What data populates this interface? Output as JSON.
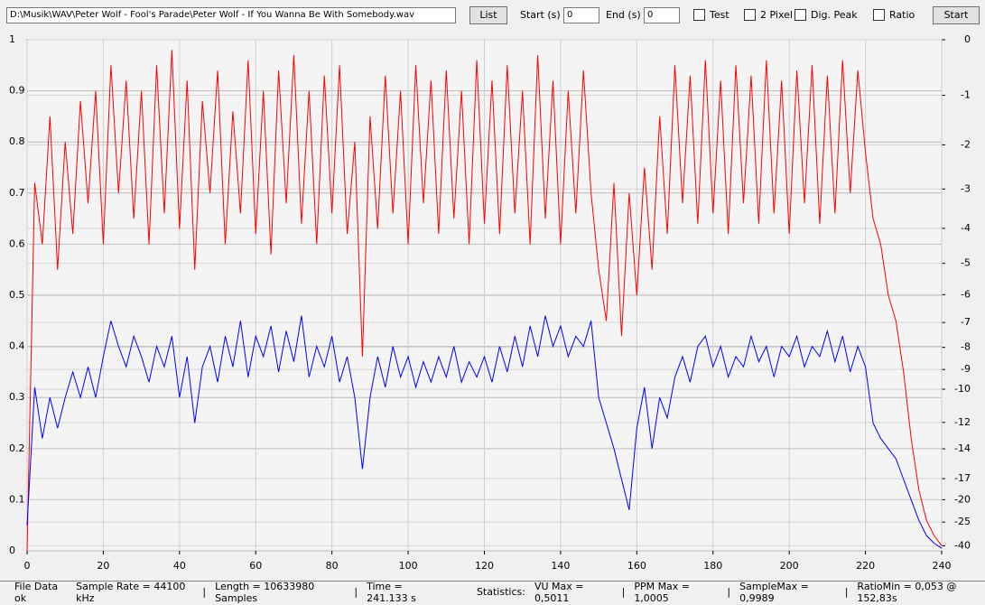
{
  "toolbar": {
    "file_path": "D:\\Musik\\WAV\\Peter Wolf - Fool's Parade\\Peter Wolf - If You Wanna Be With Somebody.wav",
    "list_button": "List",
    "start_label": "Start (s)",
    "start_value": "0",
    "end_label": "End (s)",
    "end_value": "0",
    "checkboxes": [
      "Test",
      "2 Pixel",
      "Dig. Peak",
      "Ratio"
    ],
    "start_button": "Start"
  },
  "chart_data": {
    "type": "line",
    "x": [
      0,
      2,
      4,
      6,
      8,
      10,
      12,
      14,
      16,
      18,
      20,
      22,
      24,
      26,
      28,
      30,
      32,
      34,
      36,
      38,
      40,
      42,
      44,
      46,
      48,
      50,
      52,
      54,
      56,
      58,
      60,
      62,
      64,
      66,
      68,
      70,
      72,
      74,
      76,
      78,
      80,
      82,
      84,
      86,
      88,
      90,
      92,
      94,
      96,
      98,
      100,
      102,
      104,
      106,
      108,
      110,
      112,
      114,
      116,
      118,
      120,
      122,
      124,
      126,
      128,
      130,
      132,
      134,
      136,
      138,
      140,
      142,
      144,
      146,
      148,
      150,
      152,
      154,
      156,
      158,
      160,
      162,
      164,
      166,
      168,
      170,
      172,
      174,
      176,
      178,
      180,
      182,
      184,
      186,
      188,
      190,
      192,
      194,
      196,
      198,
      200,
      202,
      204,
      206,
      208,
      210,
      212,
      214,
      216,
      218,
      220,
      222,
      224,
      226,
      228,
      230,
      232,
      234,
      236,
      238,
      240
    ],
    "series": [
      {
        "color": "#ff0000",
        "values": [
          0,
          0.72,
          0.6,
          0.85,
          0.55,
          0.8,
          0.62,
          0.88,
          0.68,
          0.9,
          0.6,
          0.95,
          0.7,
          0.92,
          0.65,
          0.9,
          0.6,
          0.95,
          0.66,
          0.98,
          0.63,
          0.92,
          0.55,
          0.88,
          0.7,
          0.94,
          0.6,
          0.86,
          0.66,
          0.96,
          0.62,
          0.9,
          0.58,
          0.94,
          0.68,
          0.97,
          0.64,
          0.9,
          0.6,
          0.93,
          0.66,
          0.95,
          0.62,
          0.8,
          0.38,
          0.85,
          0.63,
          0.93,
          0.66,
          0.9,
          0.6,
          0.95,
          0.68,
          0.92,
          0.62,
          0.94,
          0.65,
          0.9,
          0.6,
          0.96,
          0.64,
          0.92,
          0.62,
          0.95,
          0.66,
          0.9,
          0.6,
          0.97,
          0.65,
          0.92,
          0.6,
          0.9,
          0.66,
          0.94,
          0.7,
          0.55,
          0.45,
          0.72,
          0.42,
          0.7,
          0.5,
          0.75,
          0.55,
          0.85,
          0.62,
          0.95,
          0.68,
          0.93,
          0.64,
          0.96,
          0.66,
          0.92,
          0.62,
          0.95,
          0.68,
          0.93,
          0.64,
          0.96,
          0.66,
          0.92,
          0.62,
          0.94,
          0.68,
          0.95,
          0.64,
          0.93,
          0.66,
          0.96,
          0.7,
          0.94,
          0.78,
          0.65,
          0.6,
          0.5,
          0.45,
          0.35,
          0.22,
          0.12,
          0.06,
          0.03,
          0.01
        ]
      },
      {
        "color": "#0000ff",
        "values": [
          0.05,
          0.32,
          0.22,
          0.3,
          0.24,
          0.3,
          0.35,
          0.3,
          0.36,
          0.3,
          0.38,
          0.45,
          0.4,
          0.36,
          0.42,
          0.38,
          0.33,
          0.4,
          0.36,
          0.42,
          0.3,
          0.38,
          0.25,
          0.36,
          0.4,
          0.33,
          0.42,
          0.36,
          0.45,
          0.34,
          0.42,
          0.38,
          0.44,
          0.35,
          0.43,
          0.37,
          0.46,
          0.34,
          0.4,
          0.36,
          0.42,
          0.33,
          0.38,
          0.3,
          0.16,
          0.3,
          0.38,
          0.32,
          0.4,
          0.34,
          0.38,
          0.32,
          0.37,
          0.33,
          0.38,
          0.34,
          0.4,
          0.33,
          0.37,
          0.34,
          0.38,
          0.33,
          0.4,
          0.35,
          0.42,
          0.36,
          0.44,
          0.38,
          0.46,
          0.4,
          0.44,
          0.38,
          0.42,
          0.4,
          0.45,
          0.3,
          0.25,
          0.2,
          0.14,
          0.08,
          0.24,
          0.32,
          0.2,
          0.3,
          0.26,
          0.34,
          0.38,
          0.33,
          0.4,
          0.42,
          0.36,
          0.4,
          0.34,
          0.38,
          0.36,
          0.42,
          0.37,
          0.4,
          0.34,
          0.4,
          0.38,
          0.42,
          0.36,
          0.4,
          0.38,
          0.43,
          0.37,
          0.42,
          0.35,
          0.4,
          0.36,
          0.25,
          0.22,
          0.2,
          0.18,
          0.14,
          0.1,
          0.06,
          0.03,
          0.015,
          0.005
        ]
      }
    ],
    "xlim": [
      0,
      240
    ],
    "xticks": [
      0,
      20,
      40,
      60,
      80,
      100,
      120,
      140,
      160,
      180,
      200,
      220,
      240
    ],
    "ylim": [
      0,
      1
    ],
    "yticks": [
      0,
      0.1,
      0.2,
      0.3,
      0.4,
      0.5,
      0.6,
      0.7,
      0.8,
      0.9,
      1
    ],
    "y2scale": "db",
    "y2ticks": [
      0,
      -1,
      -2,
      -3,
      -4,
      -5,
      -6,
      -7,
      -8,
      -9,
      -10,
      -12,
      -14,
      -17,
      -20,
      -25,
      -40
    ],
    "grid": true
  },
  "status": [
    "File Data ok",
    "Sample Rate = 44100 kHz",
    "|",
    "Length = 10633980 Samples",
    "|",
    "Time = 241.133 s",
    "Statistics:",
    "VU Max = 0,5011",
    "|",
    "PPM Max = 1,0005",
    "|",
    "SampleMax = 0,9989",
    "|",
    "RatioMin = 0,053 @ 152,83s"
  ]
}
